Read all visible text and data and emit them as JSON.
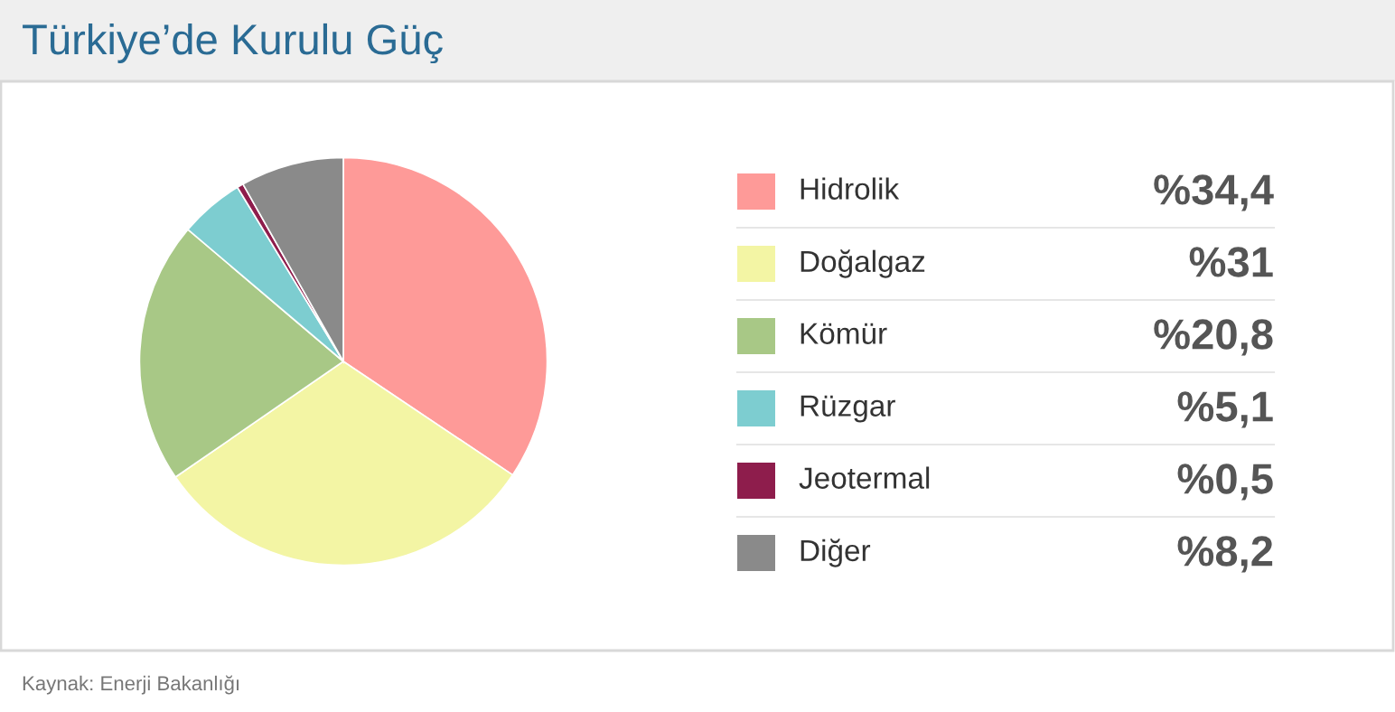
{
  "chart_data": {
    "type": "pie",
    "title": "Türkiye’de Kurulu Güç",
    "categories": [
      "Hidrolik",
      "Doğalgaz",
      "Kömür",
      "Rüzgar",
      "Jeotermal",
      "Diğer"
    ],
    "values": [
      34.4,
      31,
      20.8,
      5.1,
      0.5,
      8.2
    ],
    "colors": [
      "#fe9a98",
      "#f3f5a4",
      "#a8c886",
      "#7dcdd0",
      "#8e1d4c",
      "#8a8a8a"
    ],
    "value_labels": [
      "%34,4",
      "%31",
      "%20,8",
      "%5,1",
      "%0,5",
      "%8,2"
    ],
    "legend": "right",
    "annotations": [
      "Kaynak: Enerji Bakanlığı"
    ]
  }
}
